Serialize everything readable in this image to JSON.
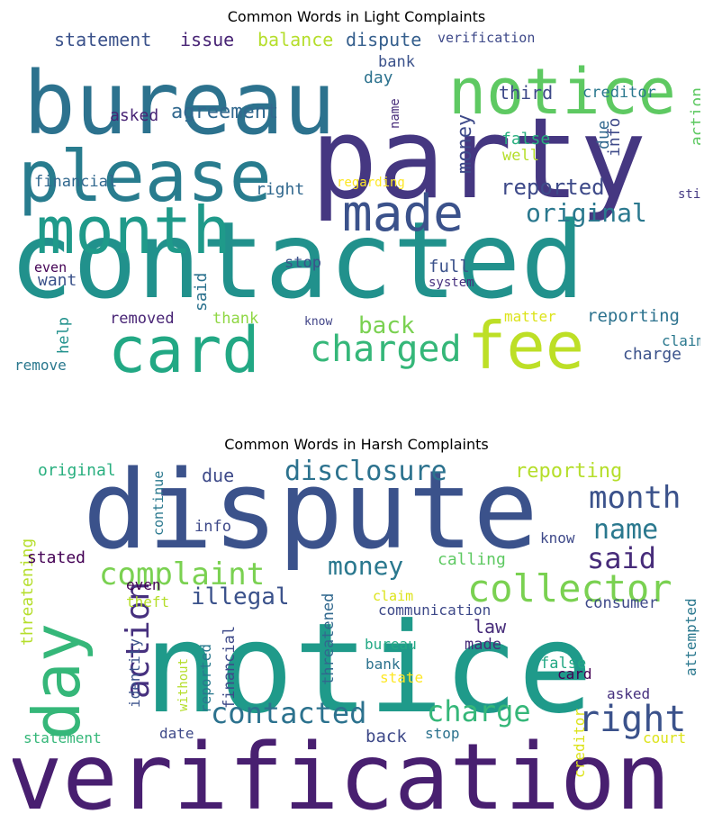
{
  "figures": [
    {
      "title": "Common Words in Light Complaints",
      "words": [
        {
          "text": "contacted",
          "color": "#21918c"
        },
        {
          "text": "party",
          "color": "#453781"
        },
        {
          "text": "bureau",
          "color": "#2c728e"
        },
        {
          "text": "notice",
          "color": "#5ec962"
        },
        {
          "text": "please",
          "color": "#287c8e"
        },
        {
          "text": "month",
          "color": "#1f9a8a"
        },
        {
          "text": "made",
          "color": "#3b528b"
        },
        {
          "text": "card",
          "color": "#22a884"
        },
        {
          "text": "fee",
          "color": "#bddf26"
        },
        {
          "text": "charged",
          "color": "#35b779"
        },
        {
          "text": "original",
          "color": "#2a788e"
        },
        {
          "text": "reported",
          "color": "#3e4a89"
        },
        {
          "text": "back",
          "color": "#7ad151"
        },
        {
          "text": "agreement",
          "color": "#31688e"
        },
        {
          "text": "statement",
          "color": "#3b528b"
        },
        {
          "text": "issue",
          "color": "#482475"
        },
        {
          "text": "balance",
          "color": "#b5de2b"
        },
        {
          "text": "dispute",
          "color": "#355f8d"
        },
        {
          "text": "verification",
          "color": "#3e4989"
        },
        {
          "text": "bank",
          "color": "#3b528b"
        },
        {
          "text": "day",
          "color": "#2c728e"
        },
        {
          "text": "third",
          "color": "#3e4a89"
        },
        {
          "text": "creditor",
          "color": "#2a788e"
        },
        {
          "text": "money",
          "color": "#3e4a89"
        },
        {
          "text": "asked",
          "color": "#482475"
        },
        {
          "text": "name",
          "color": "#472c7a"
        },
        {
          "text": "due",
          "color": "#31688e"
        },
        {
          "text": "info",
          "color": "#3e4a89"
        },
        {
          "text": "action",
          "color": "#5ec962"
        },
        {
          "text": "false",
          "color": "#29af7f"
        },
        {
          "text": "well",
          "color": "#b5de2b"
        },
        {
          "text": "financial",
          "color": "#31688e"
        },
        {
          "text": "right",
          "color": "#31688e"
        },
        {
          "text": "regarding",
          "color": "#fde725"
        },
        {
          "text": "still",
          "color": "#443983"
        },
        {
          "text": "stop",
          "color": "#3b528b"
        },
        {
          "text": "full",
          "color": "#3b528b"
        },
        {
          "text": "system",
          "color": "#46307e"
        },
        {
          "text": "even",
          "color": "#440154"
        },
        {
          "text": "want",
          "color": "#3b528b"
        },
        {
          "text": "said",
          "color": "#2c728e"
        },
        {
          "text": "help",
          "color": "#21918c"
        },
        {
          "text": "removed",
          "color": "#482475"
        },
        {
          "text": "thank",
          "color": "#8fd744"
        },
        {
          "text": "know",
          "color": "#414487"
        },
        {
          "text": "matter",
          "color": "#dce319"
        },
        {
          "text": "reporting",
          "color": "#2c728e"
        },
        {
          "text": "claim",
          "color": "#2a788e"
        },
        {
          "text": "charge",
          "color": "#3b528b"
        },
        {
          "text": "remove",
          "color": "#2a788e"
        }
      ]
    },
    {
      "title": "Common Words in Harsh Complaints",
      "words": [
        {
          "text": "dispute",
          "color": "#3b528b"
        },
        {
          "text": "notice",
          "color": "#1f9a8a"
        },
        {
          "text": "verification",
          "color": "#481f70"
        },
        {
          "text": "day",
          "color": "#35b779"
        },
        {
          "text": "collector",
          "color": "#7ad151"
        },
        {
          "text": "disclosure",
          "color": "#2c728e"
        },
        {
          "text": "month",
          "color": "#3b528b"
        },
        {
          "text": "name",
          "color": "#2a788e"
        },
        {
          "text": "said",
          "color": "#472c7a"
        },
        {
          "text": "complaint",
          "color": "#7ad151"
        },
        {
          "text": "money",
          "color": "#2a788e"
        },
        {
          "text": "action",
          "color": "#46307e"
        },
        {
          "text": "contacted",
          "color": "#2c728e"
        },
        {
          "text": "charge",
          "color": "#35b779"
        },
        {
          "text": "right",
          "color": "#3b528b"
        },
        {
          "text": "illegal",
          "color": "#3b528b"
        },
        {
          "text": "reporting",
          "color": "#b5de2b"
        },
        {
          "text": "threatening",
          "color": "#b5de2b"
        },
        {
          "text": "original",
          "color": "#29af7f"
        },
        {
          "text": "continue",
          "color": "#2a788e"
        },
        {
          "text": "due",
          "color": "#3e4a89"
        },
        {
          "text": "info",
          "color": "#3e4989"
        },
        {
          "text": "know",
          "color": "#3e4989"
        },
        {
          "text": "calling",
          "color": "#5ec962"
        },
        {
          "text": "stated",
          "color": "#440154"
        },
        {
          "text": "even",
          "color": "#440154"
        },
        {
          "text": "theft",
          "color": "#b5de2b"
        },
        {
          "text": "claim",
          "color": "#dce319"
        },
        {
          "text": "communication",
          "color": "#3e4989"
        },
        {
          "text": "consumer",
          "color": "#3e4989"
        },
        {
          "text": "law",
          "color": "#472c7a"
        },
        {
          "text": "made",
          "color": "#472c7a"
        },
        {
          "text": "bureau",
          "color": "#22a884"
        },
        {
          "text": "bank",
          "color": "#2c728e"
        },
        {
          "text": "state",
          "color": "#fde725"
        },
        {
          "text": "false",
          "color": "#22a884"
        },
        {
          "text": "card",
          "color": "#440154"
        },
        {
          "text": "asked",
          "color": "#46307e"
        },
        {
          "text": "attempted",
          "color": "#2a788e"
        },
        {
          "text": "identity",
          "color": "#3b528b"
        },
        {
          "text": "without",
          "color": "#b5de2b"
        },
        {
          "text": "reported",
          "color": "#2a788e"
        },
        {
          "text": "financial",
          "color": "#3e4a89"
        },
        {
          "text": "threatened",
          "color": "#31688e"
        },
        {
          "text": "date",
          "color": "#3e4989"
        },
        {
          "text": "back",
          "color": "#3e4989"
        },
        {
          "text": "stop",
          "color": "#2c728e"
        },
        {
          "text": "statement",
          "color": "#35b779"
        },
        {
          "text": "creditor",
          "color": "#dce319"
        },
        {
          "text": "court",
          "color": "#dce319"
        }
      ]
    }
  ]
}
